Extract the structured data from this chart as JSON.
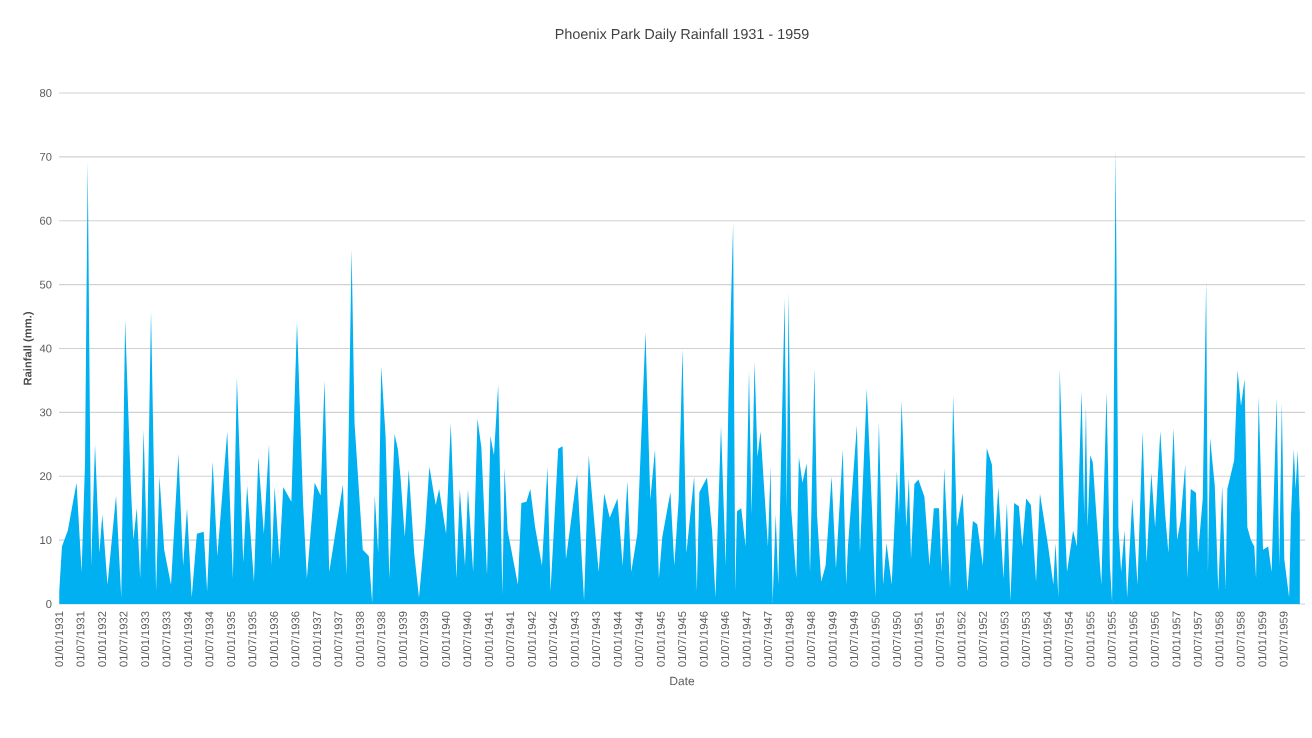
{
  "chart_data": {
    "type": "area",
    "title": "Phoenix Park Daily Rainfall 1931 - 1959",
    "xlabel": "Date",
    "ylabel": "Rainfall (mm.)",
    "x": [
      "1931-01-03",
      "1931-01-26",
      "1931-03-17",
      "1931-05-30",
      "1931-07-12",
      "1931-08-10",
      "1931-09-02",
      "1931-10-01",
      "1931-11-03",
      "1931-12-10",
      "1932-01-04",
      "1932-02-17",
      "1932-04-30",
      "1932-06-13",
      "1932-07-16",
      "1932-09-02",
      "1932-09-24",
      "1932-10-23",
      "1932-11-21",
      "1932-12-20",
      "1933-01-18",
      "1933-02-21",
      "1933-04-05",
      "1933-05-04",
      "1933-06-13",
      "1933-08-10",
      "1933-10-12",
      "1933-11-21",
      "1933-12-24",
      "1934-02-02",
      "1934-03-18",
      "1934-05-15",
      "1934-06-13",
      "1934-07-30",
      "1934-09-08",
      "1934-12-01",
      "1935-01-18",
      "1935-02-21",
      "1935-04-16",
      "1935-05-19",
      "1935-07-16",
      "1935-08-22",
      "1935-10-08",
      "1935-11-21",
      "1935-12-13",
      "1936-01-08",
      "1936-02-17",
      "1936-03-21",
      "1936-05-29",
      "1936-07-16",
      "1936-09-05",
      "1936-10-08",
      "1936-12-13",
      "1937-02-02",
      "1937-03-07",
      "1937-04-16",
      "1937-08-10",
      "1937-09-09",
      "1937-10-23",
      "1937-11-17",
      "1938-01-26",
      "1938-03-18",
      "1938-04-16",
      "1938-05-08",
      "1938-06-06",
      "1938-07-02",
      "1938-08-08",
      "1938-09-09",
      "1938-10-23",
      "1938-11-21",
      "1938-12-13",
      "1939-01-18",
      "1939-02-21",
      "1939-04-08",
      "1939-05-19",
      "1939-07-12",
      "1939-08-15",
      "1939-10-08",
      "1939-11-06",
      "1940-01-04",
      "1940-02-13",
      "1940-04-01",
      "1940-04-30",
      "1940-06-13",
      "1940-07-08",
      "1940-08-21",
      "1940-09-27",
      "1940-10-30",
      "1940-12-17",
      "1941-01-15",
      "1941-02-14",
      "1941-03-22",
      "1941-04-27",
      "1941-05-15",
      "1941-06-10",
      "1941-09-06",
      "1941-10-05",
      "1941-11-17",
      "1941-12-20",
      "1942-01-30",
      "1942-03-29",
      "1942-05-15",
      "1942-06-10",
      "1942-08-14",
      "1942-09-20",
      "1942-10-19",
      "1943-01-22",
      "1943-03-22",
      "1943-05-01",
      "1943-05-19",
      "1943-07-24",
      "1943-09-09",
      "1943-10-26",
      "1943-12-31",
      "1944-02-13",
      "1944-03-24",
      "1944-04-26",
      "1944-06-17",
      "1944-08-25",
      "1944-10-05",
      "1944-11-14",
      "1944-12-17",
      "1945-01-15",
      "1945-03-25",
      "1945-04-27",
      "1945-06-03",
      "1945-07-06",
      "1945-08-08",
      "1945-10-13",
      "1945-11-04",
      "1945-11-26",
      "1946-01-30",
      "1946-03-14",
      "1946-04-12",
      "1946-05-29",
      "1946-07-08",
      "1946-07-31",
      "1946-09-09",
      "1946-09-27",
      "1946-10-12",
      "1946-11-17",
      "1946-12-24",
      "1947-01-22",
      "1947-02-13",
      "1947-03-10",
      "1947-04-04",
      "1947-04-30",
      "1947-05-26",
      "1947-07-02",
      "1947-07-24",
      "1947-08-11",
      "1947-09-06",
      "1947-09-28",
      "1947-11-21",
      "1947-12-09",
      "1947-12-24",
      "1948-01-15",
      "1948-02-28",
      "1948-03-21",
      "1948-04-20",
      "1948-05-26",
      "1948-06-24",
      "1948-07-31",
      "1948-08-22",
      "1948-09-27",
      "1948-11-03",
      "1948-12-24",
      "1949-01-30",
      "1949-03-29",
      "1949-04-27",
      "1949-05-12",
      "1949-07-27",
      "1949-08-22",
      "1949-10-19",
      "1949-12-02",
      "1949-12-31",
      "1950-01-30",
      "1950-03-07",
      "1950-04-05",
      "1950-05-19",
      "1950-07-02",
      "1950-07-20",
      "1950-08-11",
      "1950-09-20",
      "1950-10-12",
      "1950-10-30",
      "1950-11-28",
      "1951-01-01",
      "1951-02-21",
      "1951-04-05",
      "1951-05-12",
      "1951-06-25",
      "1951-07-16",
      "1951-08-08",
      "1951-09-27",
      "1951-10-23",
      "1951-11-24",
      "1952-01-12",
      "1952-02-21",
      "1952-04-08",
      "1952-05-15",
      "1952-07-02",
      "1952-08-04",
      "1952-09-17",
      "1952-10-12",
      "1952-11-10",
      "1952-12-24",
      "1953-01-22",
      "1953-02-21",
      "1953-03-25",
      "1953-05-04",
      "1953-06-02",
      "1953-07-05",
      "1953-08-14",
      "1953-09-27",
      "1953-10-30",
      "1954-01-08",
      "1954-02-21",
      "1954-03-11",
      "1954-04-05",
      "1954-04-16",
      "1954-05-22",
      "1954-06-17",
      "1954-08-08",
      "1954-09-09",
      "1954-10-19",
      "1954-11-10",
      "1954-11-25",
      "1954-12-09",
      "1955-01-01",
      "1955-01-22",
      "1955-02-10",
      "1955-04-05",
      "1955-05-19",
      "1955-06-17",
      "1955-07-05",
      "1955-07-16",
      "1955-08-04",
      "1955-08-28",
      "1955-09-20",
      "1955-10-19",
      "1955-11-10",
      "1955-12-24",
      "1956-02-06",
      "1956-03-21",
      "1956-04-23",
      "1956-06-03",
      "1956-07-05",
      "1956-08-18",
      "1956-09-27",
      "1956-10-26",
      "1956-12-09",
      "1957-01-08",
      "1957-02-06",
      "1957-03-18",
      "1957-04-05",
      "1957-05-04",
      "1957-06-17",
      "1957-07-05",
      "1957-08-14",
      "1957-09-12",
      "1957-09-27",
      "1957-10-15",
      "1957-11-24",
      "1957-12-24",
      "1958-01-26",
      "1958-02-24",
      "1958-03-11",
      "1958-05-08",
      "1958-06-06",
      "1958-07-05",
      "1958-08-04",
      "1958-08-28",
      "1958-09-27",
      "1958-10-26",
      "1958-11-10",
      "1958-12-02",
      "1959-01-08",
      "1959-02-21",
      "1959-03-22",
      "1959-05-04",
      "1959-05-26",
      "1959-06-17",
      "1959-07-08",
      "1959-08-18",
      "1959-09-02",
      "1959-09-27",
      "1959-10-12",
      "1959-10-30",
      "1959-11-17"
    ],
    "series": [
      {
        "color": "#00b0f0",
        "values": [
          2,
          9,
          11.5,
          19,
          5,
          22,
          69.3,
          6,
          25,
          8,
          14,
          3,
          17,
          1,
          44.5,
          18.7,
          10,
          15,
          4,
          27.3,
          8,
          46,
          2,
          20,
          8.5,
          3,
          23.5,
          6,
          15,
          1,
          11,
          11.3,
          2,
          22.3,
          7.5,
          27,
          4,
          35.5,
          6.5,
          18.5,
          3.5,
          23,
          11,
          25,
          6,
          18.3,
          7,
          18.3,
          16,
          44.2,
          16,
          4,
          19,
          17,
          35,
          5,
          18.7,
          4.5,
          55.6,
          28.3,
          8.5,
          7.5,
          0.2,
          17,
          8,
          37.2,
          26.2,
          4,
          26.6,
          24.2,
          19.8,
          10.5,
          21,
          8,
          1,
          12,
          21.5,
          15.5,
          18,
          11,
          28.3,
          4,
          18,
          6,
          18,
          5,
          29,
          24.5,
          4.5,
          26.3,
          23.3,
          34.3,
          1.5,
          21.3,
          11.5,
          3,
          15.8,
          16,
          18,
          12,
          6,
          21.5,
          2,
          24.3,
          24.7,
          7,
          20.3,
          0.5,
          23.3,
          19,
          5,
          17.3,
          13.5,
          16.5,
          6,
          19.2,
          5,
          11,
          42.6,
          16.3,
          24.2,
          4,
          10.5,
          17.5,
          6,
          16.3,
          39.9,
          8,
          20,
          2,
          17.5,
          19.8,
          11.5,
          1,
          27.9,
          6,
          32,
          59.6,
          2,
          14.5,
          15,
          9,
          36.5,
          14,
          37.9,
          23,
          27,
          19.5,
          9,
          21.5,
          0.3,
          14,
          3,
          47.8,
          15,
          48.9,
          15,
          4,
          23,
          19,
          22,
          5,
          36.9,
          14,
          3.5,
          6,
          20,
          5.5,
          24.2,
          3,
          9,
          28,
          8,
          33.7,
          15,
          1,
          28.4,
          3,
          9.5,
          3,
          20.8,
          14,
          31.8,
          12,
          19.8,
          7,
          18.8,
          19.5,
          16.8,
          6,
          15,
          15,
          5,
          21.3,
          2.5,
          32.7,
          12,
          17.3,
          2,
          13,
          12.5,
          6,
          24.4,
          21.8,
          10,
          18.3,
          4,
          15.8,
          0.5,
          15.8,
          15.3,
          9,
          16.5,
          15.5,
          3.5,
          17.3,
          9,
          3,
          9.5,
          1,
          36.9,
          16,
          5,
          11.5,
          9,
          33.3,
          14,
          31,
          12,
          23.3,
          22.2,
          17,
          3,
          33.2,
          6,
          0.3,
          20,
          71.4,
          12,
          5,
          11.5,
          1,
          16.6,
          3,
          27,
          6.5,
          20.5,
          12,
          27.1,
          14.3,
          8,
          27.5,
          10,
          13,
          21.8,
          4,
          18,
          17.4,
          8,
          16.5,
          50.6,
          5,
          26,
          18.5,
          2,
          18.5,
          2.5,
          18,
          22.5,
          36.6,
          31,
          35.2,
          12,
          10,
          9,
          4,
          32.5,
          8.5,
          9,
          5,
          32.3,
          6,
          31.5,
          7,
          1,
          13.5,
          24.3,
          18,
          24,
          14
        ]
      }
    ],
    "xlim": [
      "1931-01-01",
      "1959-12-31"
    ],
    "xticks": [
      {
        "value": "1931-01-01",
        "label": "01/01/1931"
      },
      {
        "value": "1931-07-01",
        "label": "01/07/1931"
      },
      {
        "value": "1932-01-01",
        "label": "01/01/1932"
      },
      {
        "value": "1932-07-01",
        "label": "01/07/1932"
      },
      {
        "value": "1933-01-01",
        "label": "01/01/1933"
      },
      {
        "value": "1933-07-01",
        "label": "01/07/1933"
      },
      {
        "value": "1934-01-01",
        "label": "01/01/1934"
      },
      {
        "value": "1934-07-01",
        "label": "01/07/1934"
      },
      {
        "value": "1935-01-01",
        "label": "01/01/1935"
      },
      {
        "value": "1935-07-01",
        "label": "01/07/1935"
      },
      {
        "value": "1936-01-01",
        "label": "01/01/1936"
      },
      {
        "value": "1936-07-01",
        "label": "01/07/1936"
      },
      {
        "value": "1937-01-01",
        "label": "01/01/1937"
      },
      {
        "value": "1937-07-01",
        "label": "01/07/1937"
      },
      {
        "value": "1938-01-01",
        "label": "01/01/1938"
      },
      {
        "value": "1938-07-01",
        "label": "01/07/1938"
      },
      {
        "value": "1939-01-01",
        "label": "01/01/1939"
      },
      {
        "value": "1939-07-01",
        "label": "01/07/1939"
      },
      {
        "value": "1940-01-01",
        "label": "01/01/1940"
      },
      {
        "value": "1940-07-01",
        "label": "01/07/1940"
      },
      {
        "value": "1941-01-01",
        "label": "01/01/1941"
      },
      {
        "value": "1941-07-01",
        "label": "01/07/1941"
      },
      {
        "value": "1942-01-01",
        "label": "01/01/1942"
      },
      {
        "value": "1942-07-01",
        "label": "01/07/1942"
      },
      {
        "value": "1943-01-01",
        "label": "01/01/1943"
      },
      {
        "value": "1943-07-01",
        "label": "01/07/1943"
      },
      {
        "value": "1944-01-01",
        "label": "01/01/1944"
      },
      {
        "value": "1944-07-01",
        "label": "01/07/1944"
      },
      {
        "value": "1945-01-01",
        "label": "01/01/1945"
      },
      {
        "value": "1945-07-01",
        "label": "01/07/1945"
      },
      {
        "value": "1946-01-01",
        "label": "01/01/1946"
      },
      {
        "value": "1946-07-01",
        "label": "01/07/1946"
      },
      {
        "value": "1947-01-01",
        "label": "01/01/1947"
      },
      {
        "value": "1947-07-01",
        "label": "01/07/1947"
      },
      {
        "value": "1948-01-01",
        "label": "01/01/1948"
      },
      {
        "value": "1948-07-01",
        "label": "01/07/1948"
      },
      {
        "value": "1949-01-01",
        "label": "01/01/1949"
      },
      {
        "value": "1949-07-01",
        "label": "01/07/1949"
      },
      {
        "value": "1950-01-01",
        "label": "01/01/1950"
      },
      {
        "value": "1950-07-01",
        "label": "01/07/1950"
      },
      {
        "value": "1951-01-01",
        "label": "01/01/1951"
      },
      {
        "value": "1951-07-01",
        "label": "01/07/1951"
      },
      {
        "value": "1952-01-01",
        "label": "01/01/1952"
      },
      {
        "value": "1952-07-01",
        "label": "01/07/1952"
      },
      {
        "value": "1953-01-01",
        "label": "01/01/1953"
      },
      {
        "value": "1953-07-01",
        "label": "01/07/1953"
      },
      {
        "value": "1954-01-01",
        "label": "01/01/1954"
      },
      {
        "value": "1954-07-01",
        "label": "01/07/1954"
      },
      {
        "value": "1955-01-01",
        "label": "01/01/1955"
      },
      {
        "value": "1955-07-01",
        "label": "01/07/1955"
      },
      {
        "value": "1956-01-01",
        "label": "01/01/1956"
      },
      {
        "value": "1956-07-01",
        "label": "01/07/1956"
      },
      {
        "value": "1957-01-01",
        "label": "01/01/1957"
      },
      {
        "value": "1957-07-01",
        "label": "01/07/1957"
      },
      {
        "value": "1958-01-01",
        "label": "01/01/1958"
      },
      {
        "value": "1958-07-01",
        "label": "01/07/1958"
      },
      {
        "value": "1959-01-01",
        "label": "01/01/1959"
      },
      {
        "value": "1959-07-01",
        "label": "01/07/1959"
      }
    ],
    "ylim": [
      0,
      80
    ],
    "yticks": [
      0,
      10,
      20,
      30,
      40,
      50,
      60,
      70,
      80
    ],
    "grid": "y"
  }
}
